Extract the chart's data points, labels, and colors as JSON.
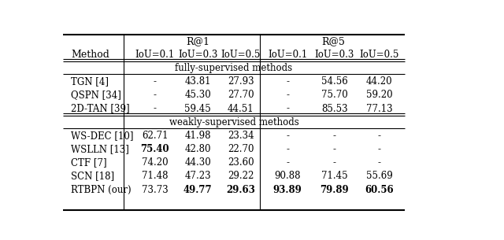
{
  "col_headers_row2": [
    "Method",
    "IoU=0.1",
    "IoU=0.3",
    "IoU=0.5",
    "IoU=0.1",
    "IoU=0.3",
    "IoU=0.5"
  ],
  "section1_label": "fully-supervised methods",
  "section2_label": "weakly-supervised methods",
  "rows_fully": [
    [
      "TGN [4]",
      "-",
      "43.81",
      "27.93",
      "-",
      "54.56",
      "44.20"
    ],
    [
      "QSPN [34]",
      "-",
      "45.30",
      "27.70",
      "-",
      "75.70",
      "59.20"
    ],
    [
      "2D-TAN [39]",
      "-",
      "59.45",
      "44.51",
      "-",
      "85.53",
      "77.13"
    ]
  ],
  "rows_weakly": [
    [
      "WS-DEC [10]",
      "62.71",
      "41.98",
      "23.34",
      "-",
      "-",
      "-"
    ],
    [
      "WSLLN [13]",
      "75.40",
      "42.80",
      "22.70",
      "-",
      "-",
      "-"
    ],
    [
      "CTF [7]",
      "74.20",
      "44.30",
      "23.60",
      "-",
      "-",
      "-"
    ],
    [
      "SCN [18]",
      "71.48",
      "47.23",
      "29.22",
      "90.88",
      "71.45",
      "55.69"
    ],
    [
      "RTBPN (our)",
      "73.73",
      "49.77",
      "29.63",
      "93.89",
      "79.89",
      "60.56"
    ]
  ],
  "bold_weakly": [
    [
      false,
      false,
      false,
      false,
      false,
      false,
      false
    ],
    [
      false,
      true,
      false,
      false,
      false,
      false,
      false
    ],
    [
      false,
      false,
      false,
      false,
      false,
      false,
      false
    ],
    [
      false,
      false,
      false,
      false,
      false,
      false,
      false
    ],
    [
      false,
      false,
      true,
      true,
      true,
      true,
      true
    ]
  ],
  "bg_color": "#ffffff",
  "text_color": "#000000",
  "figsize": [
    6.4,
    3.05
  ],
  "dpi": 100
}
